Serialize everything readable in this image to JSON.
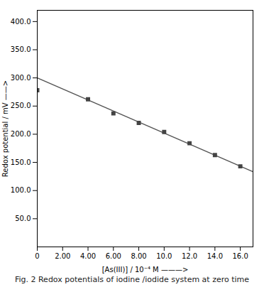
{
  "chart_data": {
    "type": "scatter",
    "title": "Fig. 2 Redox potentials of iodine /iodide system at zero time",
    "xlabel": "[As(III)] / 10⁻⁴ M ———>",
    "ylabel": "Redox potential / mV ——>",
    "xlim": [
      0,
      17
    ],
    "ylim": [
      0,
      420
    ],
    "xticks": [
      0,
      {
        "value": 2.0,
        "label": "2.00"
      },
      {
        "value": 4.0,
        "label": "4.00"
      },
      {
        "value": 6.0,
        "label": "6.00"
      },
      {
        "value": 8.0,
        "label": "8.00"
      },
      {
        "value": 10.0,
        "label": "10.0"
      },
      {
        "value": 12.0,
        "label": "12.0"
      },
      {
        "value": 14.0,
        "label": "14.0"
      },
      {
        "value": 16.0,
        "label": "16.0"
      }
    ],
    "yticks": [
      {
        "value": 50.0,
        "label": "50.0"
      },
      {
        "value": 100.0,
        "label": "100.0"
      },
      {
        "value": 150.0,
        "label": "150.0"
      },
      {
        "value": 200.0,
        "label": "200.0"
      },
      {
        "value": 250.0,
        "label": "250.0"
      },
      {
        "value": 300.0,
        "label": "300.0"
      },
      {
        "value": 350.0,
        "label": "350.0"
      },
      {
        "value": 400.0,
        "label": "400.0"
      }
    ],
    "series": [
      {
        "type": "line",
        "x": [
          0,
          17
        ],
        "values": [
          300,
          133.4
        ],
        "color": "#555555"
      },
      {
        "type": "scatter",
        "x": [
          0,
          4.0,
          6.0,
          8.0,
          10.0,
          12.0,
          14.0,
          16.0
        ],
        "values": [
          278,
          262,
          237,
          220,
          204,
          184,
          163,
          143
        ],
        "color": "#444444",
        "marker": "square"
      }
    ]
  }
}
